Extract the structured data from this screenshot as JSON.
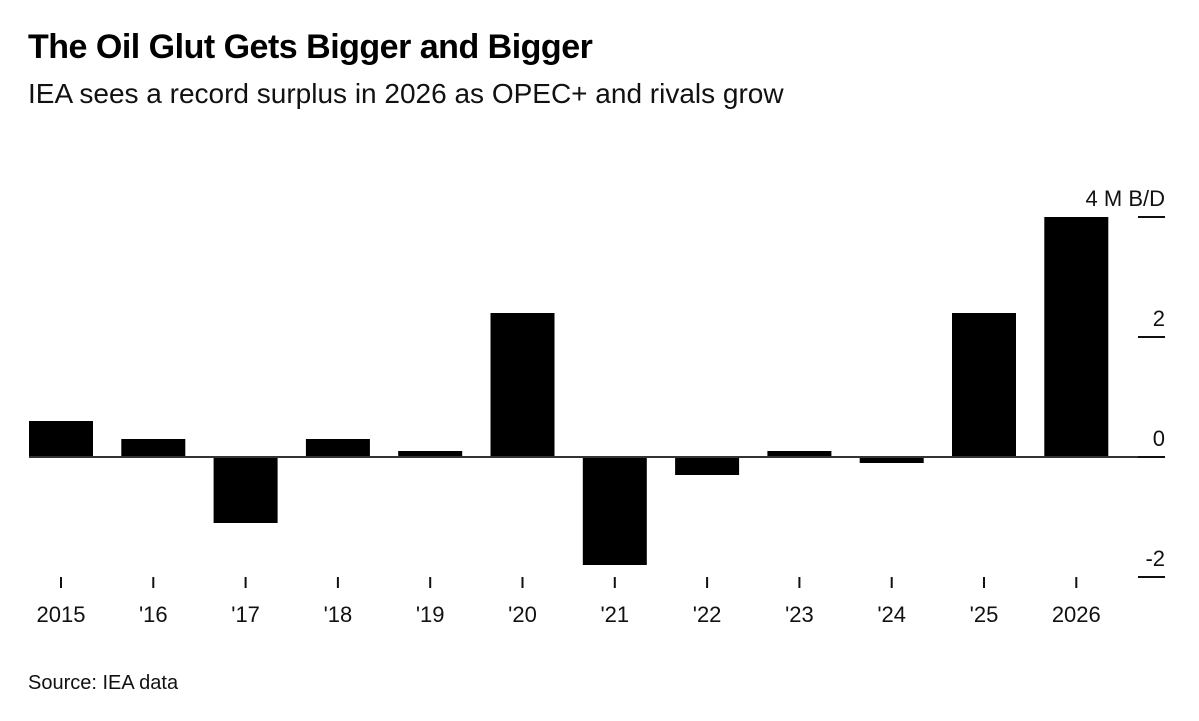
{
  "header": {
    "title": "The Oil Glut Gets Bigger and Bigger",
    "subtitle": "IEA sees a record surplus in 2026 as OPEC+ and rivals grow"
  },
  "footer": {
    "source": "Source: IEA data"
  },
  "chart_data": {
    "type": "bar",
    "title": "The Oil Glut Gets Bigger and Bigger",
    "subtitle": "IEA sees a record surplus in 2026 as OPEC+ and rivals grow",
    "categories": [
      "2015",
      "'16",
      "'17",
      "'18",
      "'19",
      "'20",
      "'21",
      "'22",
      "'23",
      "'24",
      "'25",
      "2026"
    ],
    "values": [
      0.6,
      0.3,
      -1.1,
      0.3,
      0.1,
      2.4,
      -1.8,
      -0.3,
      0.1,
      -0.1,
      2.4,
      4.0
    ],
    "unit": "M B/D",
    "xlabel": "",
    "ylabel": "",
    "ylim": [
      -2,
      4
    ],
    "yticks": [
      4,
      2,
      0,
      -2
    ],
    "ytick_labels": [
      "4 M B/D",
      "2",
      "0",
      "-2"
    ],
    "y_axis_side": "right",
    "grid": false,
    "legend": null,
    "bar_color": "#000000",
    "source": "Source: IEA data"
  }
}
